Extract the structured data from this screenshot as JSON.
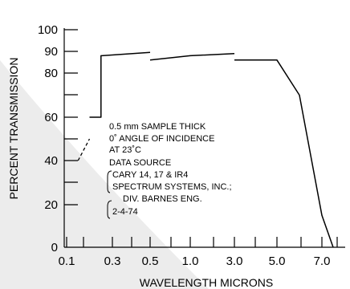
{
  "chart_data": {
    "type": "line",
    "title": "",
    "xlabel": "WAVELENGTH MICRONS",
    "ylabel": "PERCENT TRANSMISSION",
    "x_ticks": [
      "0.1",
      "0.3",
      "0.5",
      "1.0",
      "3.0",
      "5.0",
      "7.0"
    ],
    "y_ticks": [
      "0",
      "20",
      "40",
      "60",
      "80",
      "90",
      "100"
    ],
    "ylim": [
      0,
      100
    ],
    "grid": false,
    "x_scale": "categorical-nonuniform",
    "series": [
      {
        "style": "solid",
        "segments": [
          [
            [
              0.2,
              60
            ],
            [
              0.25,
              60
            ],
            [
              0.25,
              88
            ],
            [
              0.5,
              89.5
            ]
          ],
          [
            [
              0.5,
              86
            ],
            [
              1.0,
              88
            ],
            [
              3.0,
              89
            ]
          ],
          [
            [
              3.0,
              86
            ],
            [
              5.0,
              86
            ],
            [
              6.0,
              70
            ],
            [
              7.0,
              15
            ],
            [
              7.5,
              0
            ]
          ]
        ]
      },
      {
        "style": "dashed",
        "segments": [
          [
            [
              0.15,
              40
            ],
            [
              0.2,
              50
            ]
          ]
        ]
      }
    ],
    "annotations": [
      "0.5 mm SAMPLE THICK",
      "0˚ ANGLE OF INCIDENCE",
      "AT 23˚C",
      "DATA SOURCE",
      "CARY 14, 17  & IR4",
      "SPECTRUM SYSTEMS, INC.;",
      "DIV. BARNES ENG.",
      "2-4-74"
    ]
  }
}
